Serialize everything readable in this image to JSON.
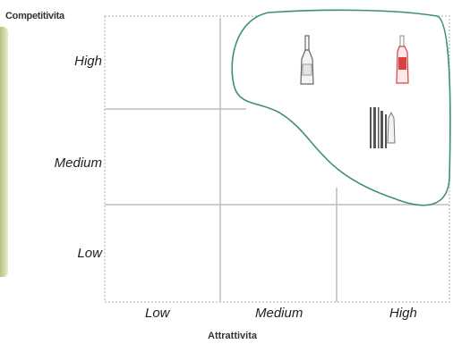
{
  "axes": {
    "y_title": "Competitivita",
    "x_title": "Attrattivita",
    "y_levels": [
      "High",
      "Medium",
      "Low"
    ],
    "x_levels": [
      "Low",
      "Medium",
      "High"
    ]
  },
  "colors": {
    "frame": "#c8c8c8",
    "grid": "#bdbdbd",
    "region_stroke": "#3e8f7a",
    "bottle_red": "#d94040",
    "bottle_gray": "#666666"
  },
  "items": [
    {
      "icon": "wine-bottle-icon",
      "cell": "high-medium"
    },
    {
      "icon": "red-bottle-icon",
      "cell": "high-high"
    },
    {
      "icon": "barcode-product-icon",
      "cell": "medium-high"
    }
  ]
}
